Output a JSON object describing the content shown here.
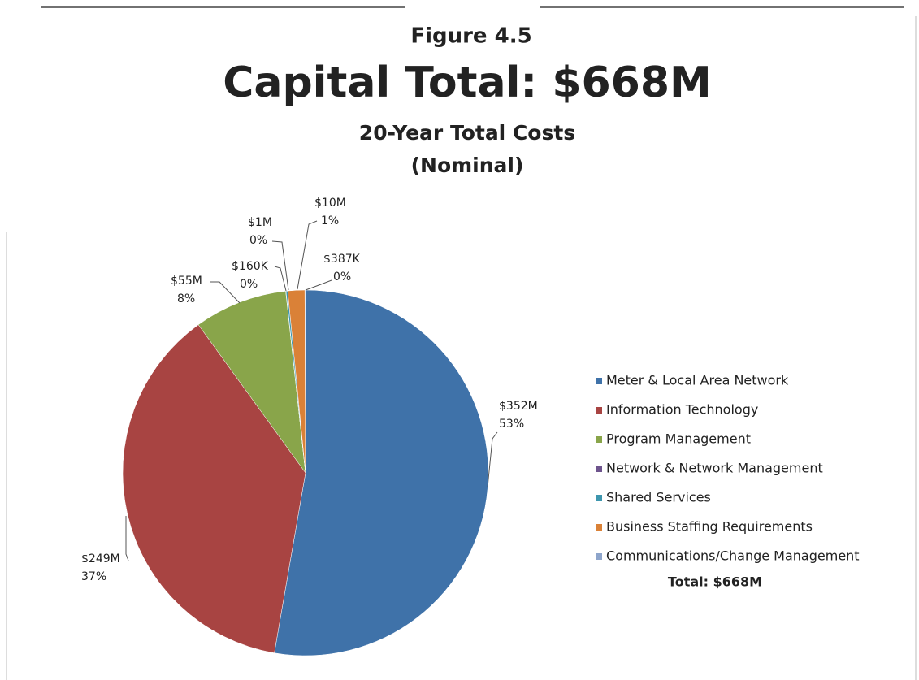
{
  "chart_data": {
    "type": "pie",
    "figure_label": "Figure 4.5",
    "title": "Capital Total: $668M",
    "subtitle": "20-Year Total Costs",
    "subtitle2": "(Nominal)",
    "legend_total": "Total: $668M",
    "categories": [
      "Meter & Local Area Network",
      "Information Technology",
      "Program Management",
      "Network & Network Management",
      "Shared Services",
      "Business Staffing Requirements",
      "Communications/Change Management"
    ],
    "values": [
      352,
      249,
      55,
      0.16,
      1,
      10,
      0.387
    ],
    "value_labels": [
      "$352M",
      "$249M",
      "$55M",
      "$160K",
      "$1M",
      "$10M",
      "$387K"
    ],
    "percents": [
      53,
      37,
      8,
      0,
      0,
      1,
      0
    ],
    "percent_labels": [
      "53%",
      "37%",
      "8%",
      "0%",
      "0%",
      "1%",
      "0%"
    ],
    "colors": [
      "#3f72a9",
      "#a84442",
      "#89a54a",
      "#6e548d",
      "#3d96ae",
      "#da8137",
      "#8ea5cb"
    ],
    "legend": "right"
  }
}
